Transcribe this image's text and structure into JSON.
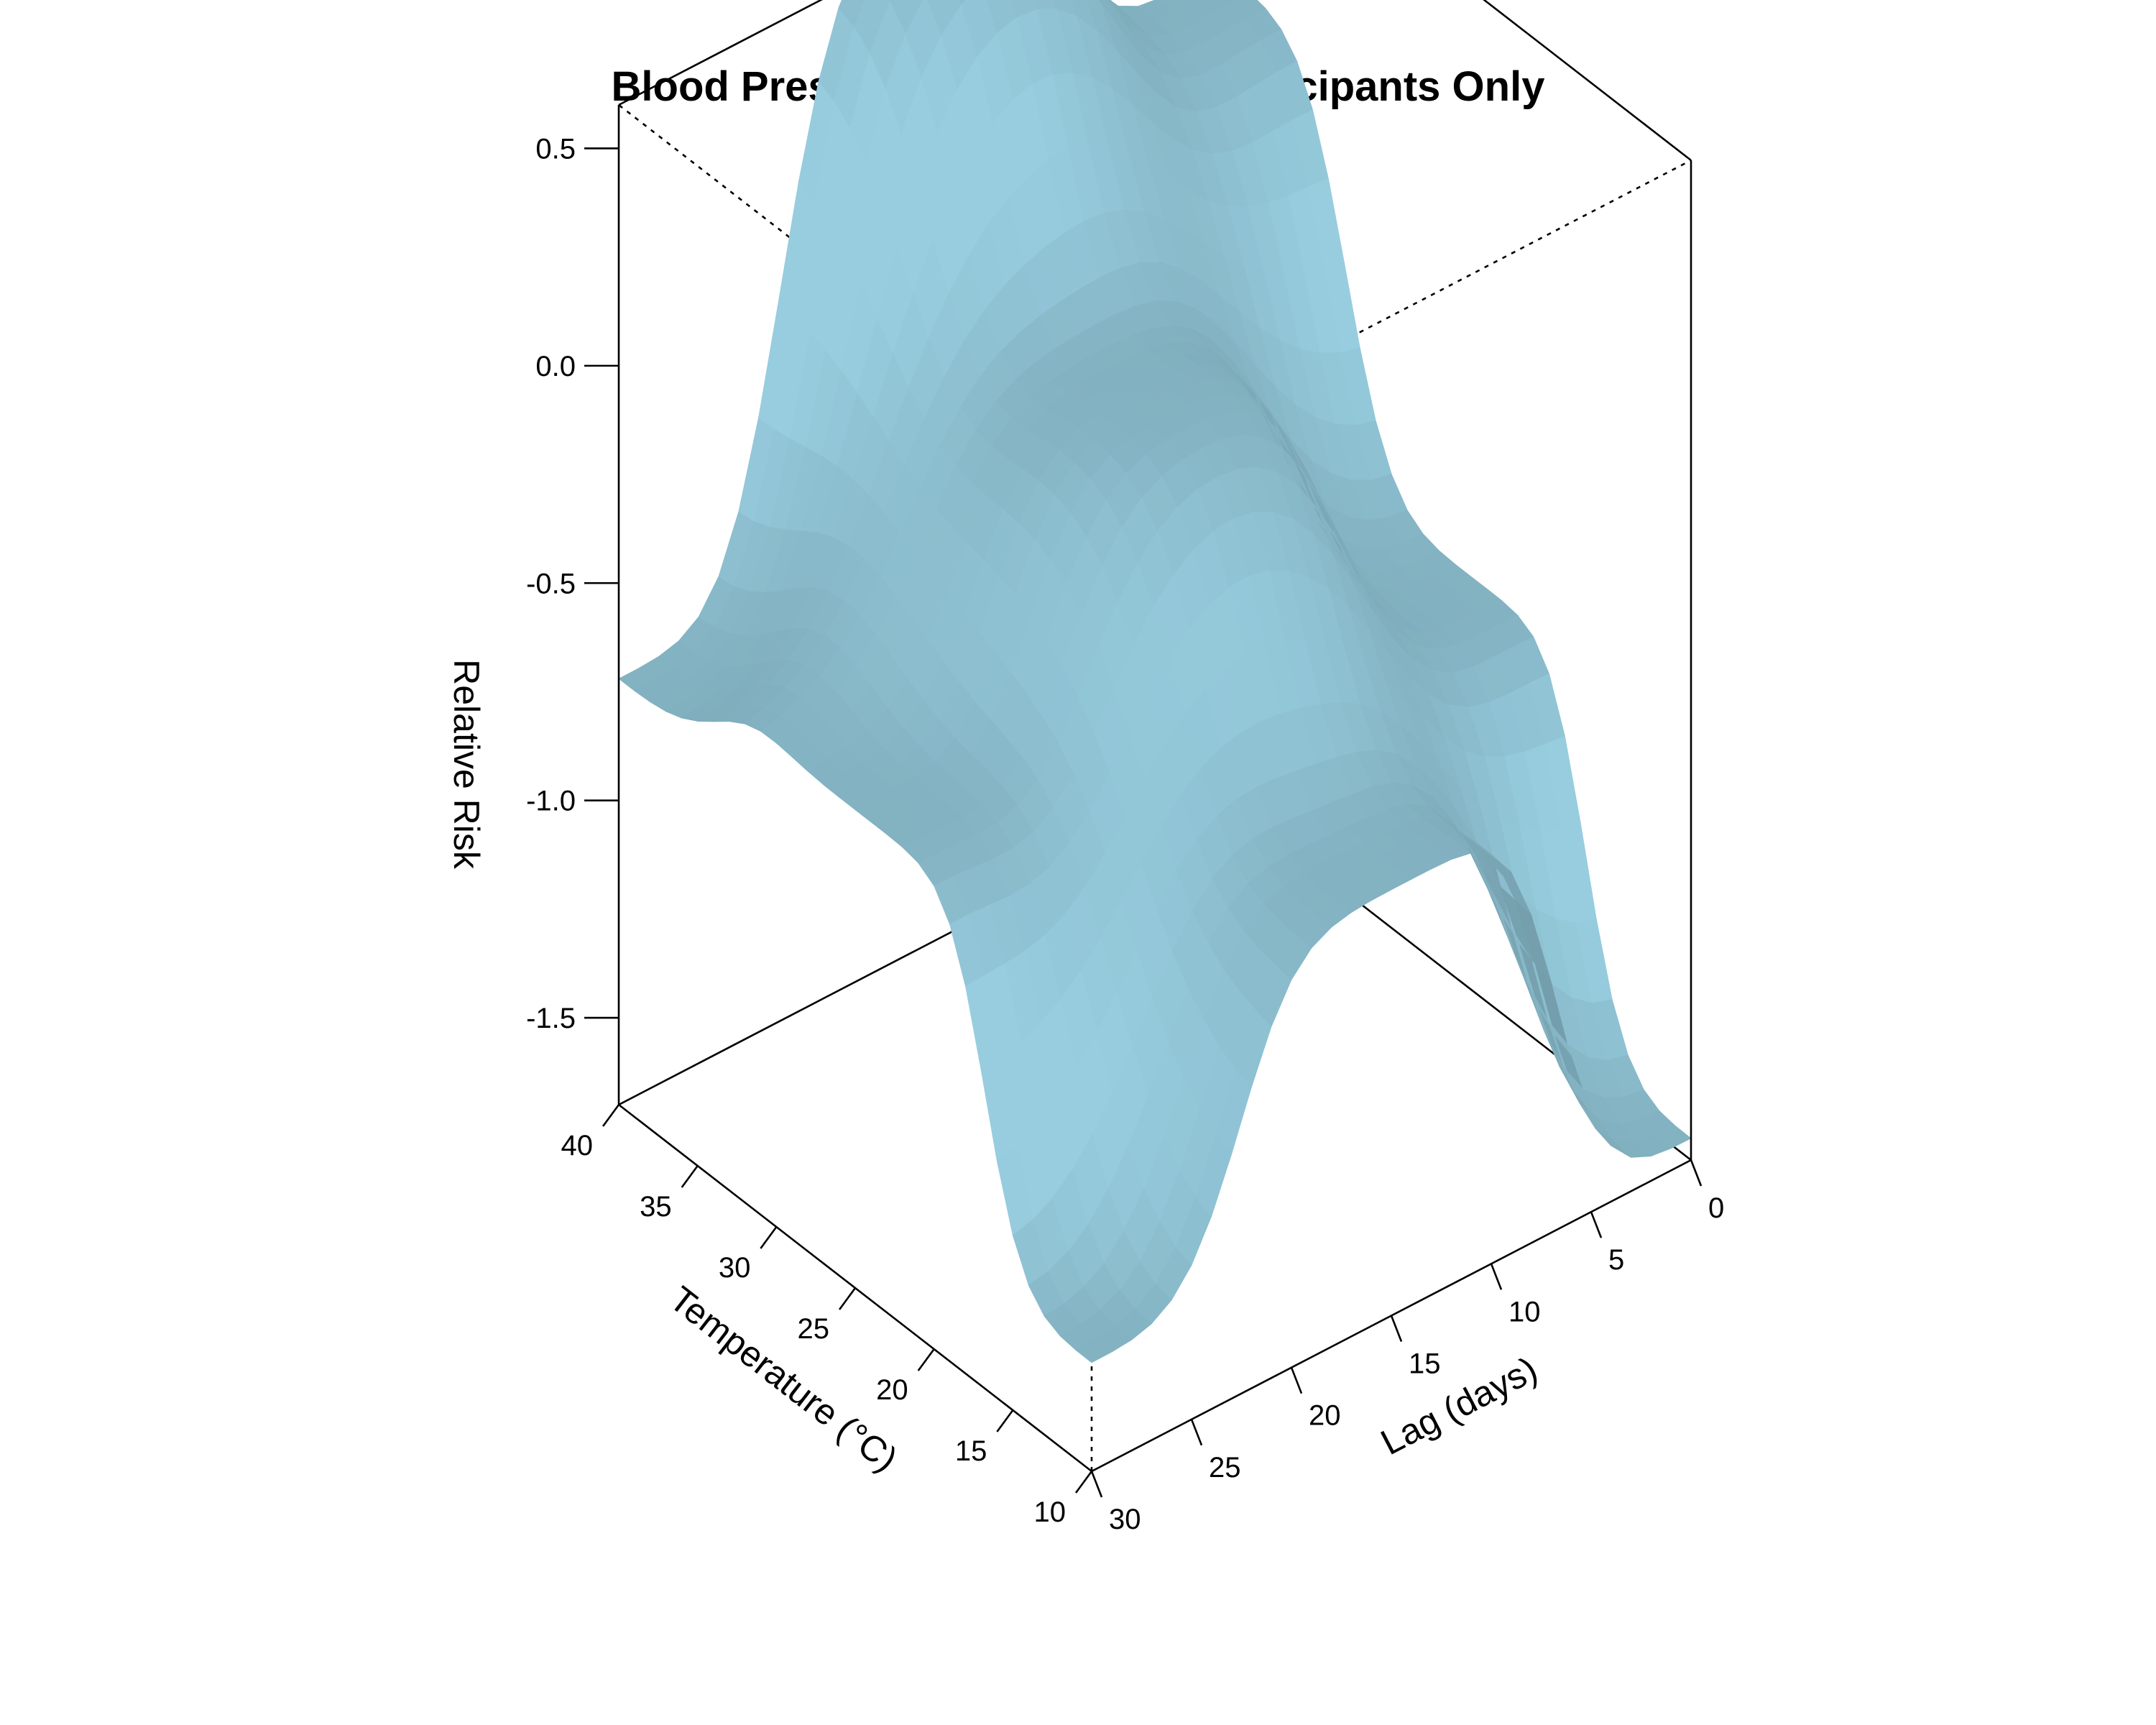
{
  "chart_data": {
    "type": "surface",
    "title": "Blood Pressure: Clinical Trial Participants Only",
    "x_axis": {
      "label": "Temperature (°C)",
      "range": [
        10,
        40
      ],
      "ticks": [
        "10",
        "15",
        "20",
        "25",
        "30",
        "35",
        "40"
      ]
    },
    "y_axis": {
      "label": "Lag (days)",
      "range": [
        0,
        30
      ],
      "ticks": [
        "0",
        "5",
        "10",
        "15",
        "20",
        "25",
        "30"
      ]
    },
    "z_axis": {
      "label": "Relative Risk",
      "range": [
        -1.7,
        0.6
      ],
      "ticks": [
        "-1.5",
        "-1.0",
        "-0.5",
        "0.0",
        "0.5"
      ]
    },
    "surface_color": "#8ec1d2",
    "grid": false,
    "surface_points": [
      {
        "temperature": 10,
        "lag": 0,
        "risk": -1.65
      },
      {
        "temperature": 10,
        "lag": 30,
        "risk": -1.45
      },
      {
        "temperature": 40,
        "lag": 0,
        "risk": 0.2
      },
      {
        "temperature": 40,
        "lag": 30,
        "risk": -0.72
      },
      {
        "temperature": 25,
        "lag": 15,
        "risk": -0.02
      },
      {
        "temperature": 24,
        "lag": 0,
        "risk": -0.75
      },
      {
        "temperature": 24,
        "lag": 30,
        "risk": -0.6
      },
      {
        "temperature": 40,
        "lag": 14,
        "risk": 0.72
      },
      {
        "temperature": 10,
        "lag": 14,
        "risk": -0.72
      }
    ]
  }
}
